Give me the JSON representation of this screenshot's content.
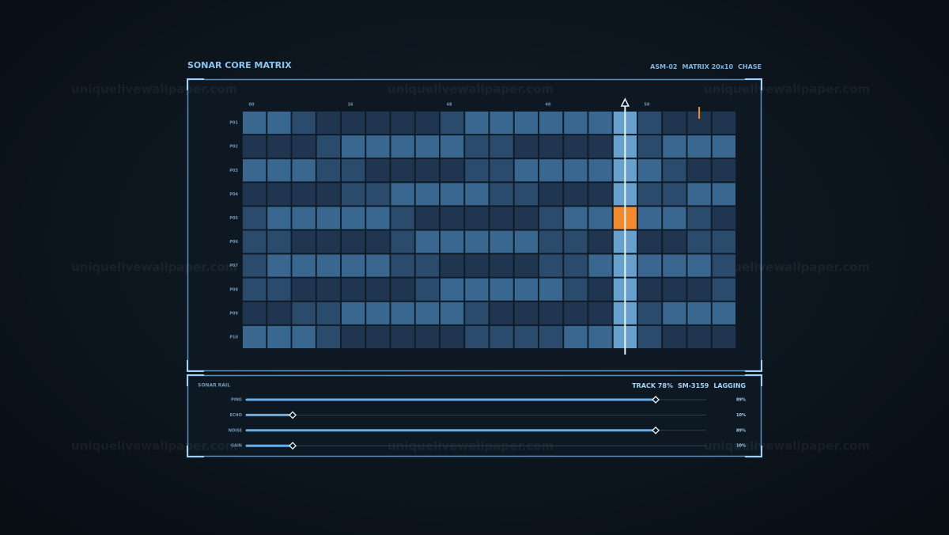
{
  "watermark": "uniquelivewallpaper.com",
  "header": {
    "title": "SONAR CORE MATRIX",
    "meta": [
      "ASM-02",
      "MATRIX 20x10",
      "CHASE"
    ]
  },
  "matrix": {
    "column_labels": [
      {
        "column": 0,
        "label": "00"
      },
      {
        "column": 4,
        "label": "16"
      },
      {
        "column": 8,
        "label": "48"
      },
      {
        "column": 12,
        "label": "40"
      },
      {
        "column": 16,
        "label": "50"
      }
    ],
    "row_labels": [
      "P01",
      "P02",
      "P03",
      "P04",
      "P05",
      "P06",
      "P07",
      "P08",
      "P09",
      "P10"
    ],
    "palette": [
      "#162539",
      "#1f3550",
      "#2b4b6c",
      "#3a6790",
      "#6aa5d2"
    ],
    "levels": [
      [
        3,
        3,
        2,
        1,
        1,
        1,
        1,
        1,
        2,
        3,
        3,
        3,
        3,
        3,
        3,
        4,
        2,
        1,
        1,
        1
      ],
      [
        1,
        1,
        1,
        2,
        3,
        3,
        3,
        3,
        3,
        2,
        2,
        1,
        1,
        1,
        1,
        4,
        2,
        3,
        3,
        3
      ],
      [
        3,
        3,
        3,
        2,
        2,
        1,
        1,
        1,
        1,
        2,
        2,
        3,
        3,
        3,
        3,
        4,
        3,
        2,
        1,
        1
      ],
      [
        1,
        1,
        1,
        1,
        2,
        2,
        3,
        3,
        3,
        3,
        2,
        2,
        1,
        1,
        1,
        4,
        2,
        2,
        3,
        3
      ],
      [
        2,
        3,
        3,
        3,
        3,
        3,
        2,
        1,
        1,
        1,
        1,
        1,
        2,
        3,
        3,
        4,
        3,
        3,
        2,
        1
      ],
      [
        2,
        2,
        1,
        1,
        1,
        1,
        2,
        3,
        3,
        3,
        3,
        3,
        2,
        2,
        1,
        4,
        1,
        1,
        2,
        2
      ],
      [
        2,
        3,
        3,
        3,
        3,
        3,
        2,
        2,
        1,
        1,
        1,
        1,
        2,
        2,
        3,
        4,
        3,
        3,
        3,
        2
      ],
      [
        2,
        2,
        1,
        1,
        1,
        1,
        1,
        2,
        3,
        3,
        3,
        3,
        3,
        2,
        1,
        4,
        1,
        1,
        1,
        2
      ],
      [
        1,
        1,
        2,
        2,
        3,
        3,
        3,
        3,
        3,
        2,
        1,
        1,
        1,
        1,
        1,
        4,
        2,
        3,
        3,
        3
      ],
      [
        3,
        3,
        3,
        2,
        1,
        1,
        1,
        1,
        1,
        2,
        2,
        2,
        2,
        3,
        3,
        4,
        2,
        1,
        1,
        1
      ]
    ],
    "playhead_column": 15,
    "active_cell": {
      "row": 4,
      "column": 15,
      "color": "#f28a30"
    },
    "marker_column": 18
  },
  "rail": {
    "title": "SONAR RAIL",
    "status": [
      "TRACK 78%",
      "SM-3159",
      "LAGGING"
    ],
    "sliders": [
      {
        "label": "PING",
        "value": 89,
        "value_label": "89%"
      },
      {
        "label": "ECHO",
        "value": 10,
        "value_label": "10%"
      },
      {
        "label": "NOISE",
        "value": 89,
        "value_label": "89%"
      },
      {
        "label": "GAIN",
        "value": 10,
        "value_label": "10%"
      }
    ]
  }
}
